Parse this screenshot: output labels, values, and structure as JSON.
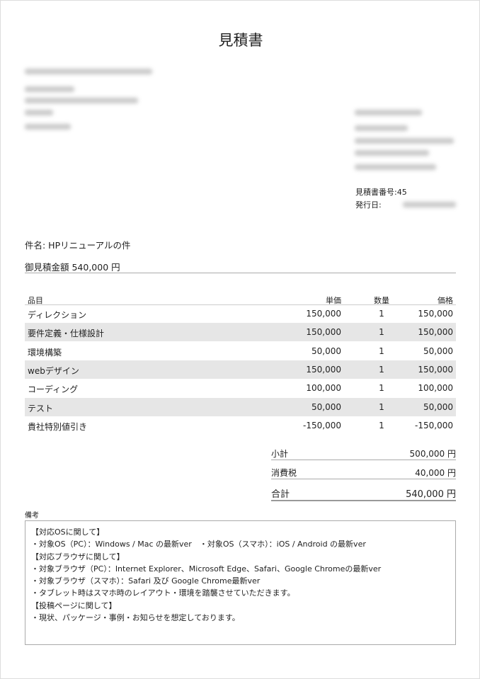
{
  "title": "見積書",
  "estimate_number_label": "見積書番号:45",
  "issue_date_label": "発行日:",
  "subject": "件名: HPリニューアルの件",
  "total_heading": "御見積金額 540,000 円",
  "table": {
    "headers": [
      "品目",
      "単価",
      "数量",
      "価格"
    ],
    "rows": [
      [
        "ディレクション",
        "150,000",
        "1",
        "150,000"
      ],
      [
        "要件定義・仕様設計",
        "150,000",
        "1",
        "150,000"
      ],
      [
        "環境構築",
        "50,000",
        "1",
        "50,000"
      ],
      [
        "webデザイン",
        "150,000",
        "1",
        "150,000"
      ],
      [
        "コーディング",
        "100,000",
        "1",
        "100,000"
      ],
      [
        "テスト",
        "50,000",
        "1",
        "50,000"
      ],
      [
        "貴社特別値引き",
        "-150,000",
        "1",
        "-150,000"
      ]
    ]
  },
  "summary": {
    "subtotal_label": "小計",
    "subtotal": "500,000 円",
    "tax_label": "消費税",
    "tax": "40,000 円",
    "total_label": "合計",
    "total": "540,000 円"
  },
  "remarks_label": "備考",
  "remarks": [
    "【対応OSに関して】",
    "・対象OS（PC）：Windows / Mac の最新ver　・対象OS（スマホ）：iOS / Android の最新ver",
    "【対応ブラウザに関して】",
    "・対象ブラウザ（PC）：Internet Explorer、Microsoft Edge、Safari、Google Chromeの最新ver",
    "・対象ブラウザ（スマホ）：Safari 及び Google Chrome最新ver",
    "・タブレット時はスマホ時のレイアウト・環境を踏襲させていただきます。",
    "【投稿ページに関して】",
    "・現状、パッケージ・事例・お知らせを想定しております。"
  ],
  "colors": {
    "row_shade": "#e6e6e6",
    "rule": "#aaaaaa"
  }
}
